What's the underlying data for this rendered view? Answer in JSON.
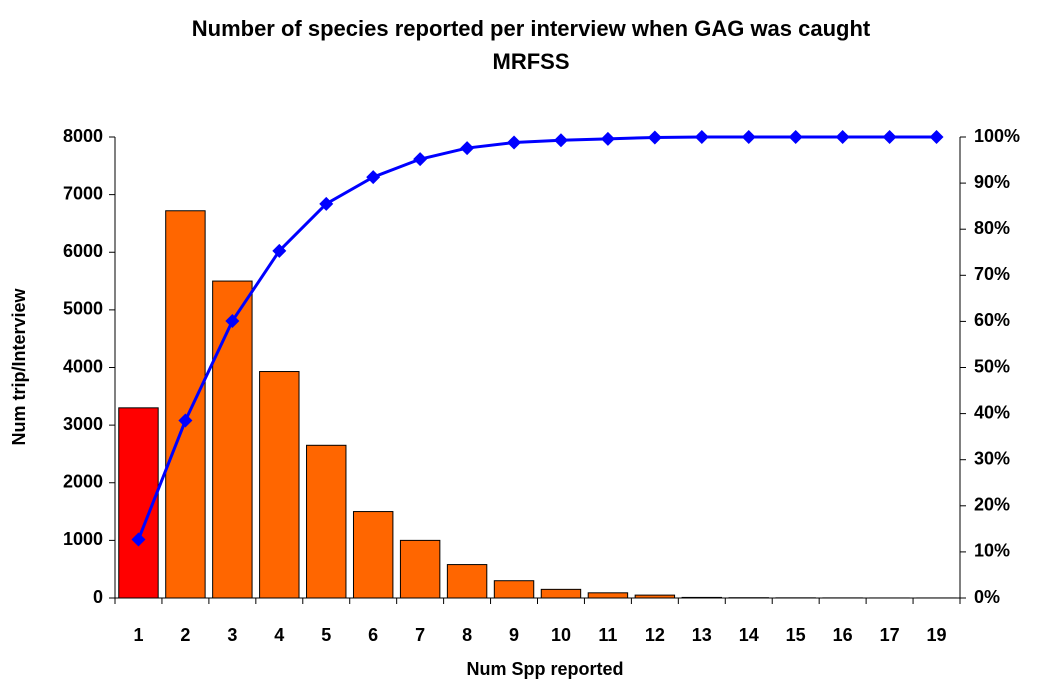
{
  "chart_data": {
    "type": "pareto",
    "title": "Number of species reported per interview when GAG was caught MRFSS",
    "x_label": "Num Spp reported",
    "y_label": "Num trip/Interview",
    "categories": [
      "1",
      "2",
      "3",
      "4",
      "5",
      "6",
      "7",
      "8",
      "9",
      "10",
      "11",
      "12",
      "13",
      "14",
      "15",
      "16",
      "17",
      "19"
    ],
    "series": [
      {
        "type": "bar",
        "color": "#ff6600",
        "colors": [
          "#ff0000",
          "#ff6600",
          "#ff6600",
          "#ff6600",
          "#ff6600",
          "#ff6600",
          "#ff6600",
          "#ff6600",
          "#ff6600",
          "#ff6600",
          "#ff6600",
          "#ff6600",
          "#ff6600",
          "#ff6600",
          "#ff6600",
          "#ff6600",
          "#ff6600",
          "#ff6600"
        ],
        "values": [
          3300,
          6720,
          5500,
          3930,
          2650,
          1500,
          1000,
          580,
          300,
          150,
          90,
          50,
          10,
          5,
          3,
          2,
          1,
          1
        ]
      },
      {
        "type": "line",
        "axis": "y2",
        "color": "#0000ff",
        "values": [
          12.7,
          38.5,
          60.1,
          75.3,
          85.5,
          91.3,
          95.2,
          97.6,
          98.8,
          99.3,
          99.6,
          99.9,
          100,
          100,
          100,
          100,
          100,
          100
        ]
      }
    ],
    "ylim": [
      0,
      8000
    ],
    "yticks": [
      0,
      1000,
      2000,
      3000,
      4000,
      5000,
      6000,
      7000,
      8000
    ],
    "y2lim": [
      0,
      100
    ],
    "y2ticks": [
      {
        "value": 0,
        "label": "0%"
      },
      {
        "value": 10,
        "label": "10%"
      },
      {
        "value": 20,
        "label": "20%"
      },
      {
        "value": 30,
        "label": "30%"
      },
      {
        "value": 40,
        "label": "40%"
      },
      {
        "value": 50,
        "label": "50%"
      },
      {
        "value": 60,
        "label": "60%"
      },
      {
        "value": 70,
        "label": "70%"
      },
      {
        "value": 80,
        "label": "80%"
      },
      {
        "value": 90,
        "label": "90%"
      },
      {
        "value": 100,
        "label": "100%"
      }
    ]
  }
}
